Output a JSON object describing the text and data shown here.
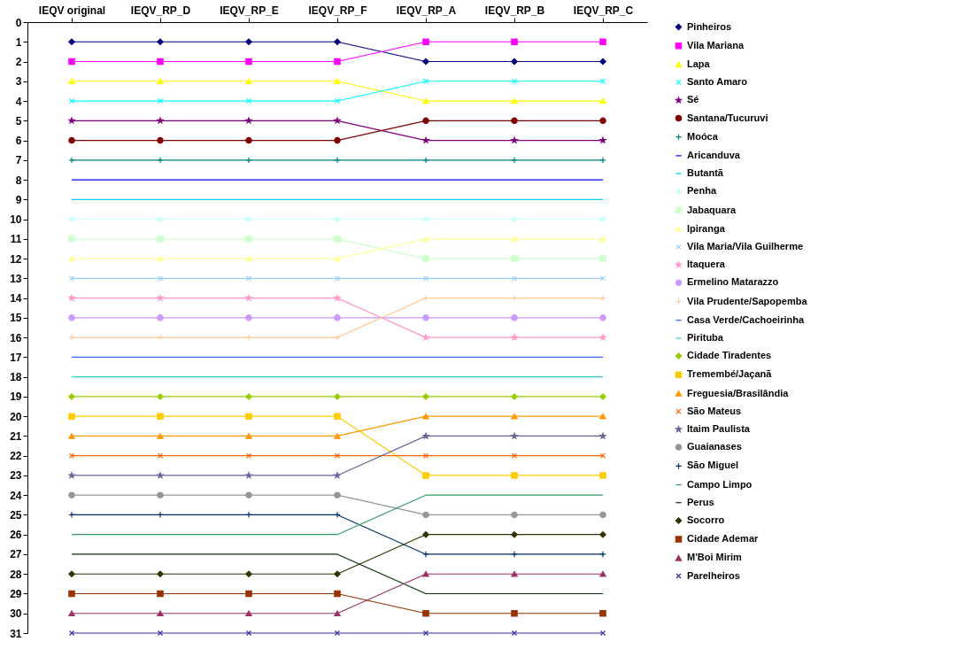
{
  "chart_data": {
    "type": "line",
    "categories": [
      "IEQV original",
      "IEQV_RP_D",
      "IEQV_RP_E",
      "IEQV_RP_F",
      "IEQV_RP_A",
      "IEQV_RP_B",
      "IEQV_RP_C"
    ],
    "ylim": [
      31,
      0
    ],
    "yticks": [
      0,
      1,
      2,
      3,
      4,
      5,
      6,
      7,
      8,
      9,
      10,
      11,
      12,
      13,
      14,
      15,
      16,
      17,
      18,
      19,
      20,
      21,
      22,
      23,
      24,
      25,
      26,
      27,
      28,
      29,
      30,
      31
    ],
    "grid": false,
    "legend": "right",
    "series": [
      {
        "name": "Pinheiros",
        "color": "#000080",
        "marker": "diamond",
        "values": [
          1,
          1,
          1,
          1,
          2,
          2,
          2
        ]
      },
      {
        "name": "Vila Mariana",
        "color": "#ff00ff",
        "marker": "square",
        "values": [
          2,
          2,
          2,
          2,
          1,
          1,
          1
        ]
      },
      {
        "name": "Lapa",
        "color": "#ffff00",
        "marker": "triangle",
        "values": [
          3,
          3,
          3,
          3,
          4,
          4,
          4
        ]
      },
      {
        "name": "Santo Amaro",
        "color": "#00ffff",
        "marker": "cross",
        "values": [
          4,
          4,
          4,
          4,
          3,
          3,
          3
        ]
      },
      {
        "name": "Sé",
        "color": "#800080",
        "marker": "star",
        "values": [
          5,
          5,
          5,
          5,
          6,
          6,
          6
        ]
      },
      {
        "name": "Santana/Tucuruvi",
        "color": "#800000",
        "marker": "circle",
        "values": [
          6,
          6,
          6,
          6,
          5,
          5,
          5
        ]
      },
      {
        "name": "Moóca",
        "color": "#008080",
        "marker": "plus",
        "values": [
          7,
          7,
          7,
          7,
          7,
          7,
          7
        ]
      },
      {
        "name": "Aricanduva",
        "color": "#0000ff",
        "marker": "none",
        "values": [
          8,
          8,
          8,
          8,
          8,
          8,
          8
        ]
      },
      {
        "name": "Butantã",
        "color": "#00ccff",
        "marker": "none",
        "values": [
          9,
          9,
          9,
          9,
          9,
          9,
          9
        ]
      },
      {
        "name": "Penha",
        "color": "#ccffff",
        "marker": "diamond",
        "values": [
          10,
          10,
          10,
          10,
          10,
          10,
          10
        ]
      },
      {
        "name": "Jabaquara",
        "color": "#ccffcc",
        "marker": "square",
        "values": [
          11,
          11,
          11,
          11,
          12,
          12,
          12
        ]
      },
      {
        "name": "Ipiranga",
        "color": "#ffff99",
        "marker": "triangle",
        "values": [
          12,
          12,
          12,
          12,
          11,
          11,
          11
        ]
      },
      {
        "name": "Vila Maria/Vila Guilherme",
        "color": "#99ccff",
        "marker": "cross",
        "values": [
          13,
          13,
          13,
          13,
          13,
          13,
          13
        ]
      },
      {
        "name": "Itaquera",
        "color": "#ff99cc",
        "marker": "star",
        "values": [
          14,
          14,
          14,
          14,
          16,
          16,
          16
        ]
      },
      {
        "name": "Ermelino Matarazzo",
        "color": "#cc99ff",
        "marker": "circle",
        "values": [
          15,
          15,
          15,
          15,
          15,
          15,
          15
        ]
      },
      {
        "name": "Vila Prudente/Sapopemba",
        "color": "#ffcc99",
        "marker": "plus",
        "values": [
          16,
          16,
          16,
          16,
          14,
          14,
          14
        ]
      },
      {
        "name": "Casa Verde/Cachoeirinha",
        "color": "#3366ff",
        "marker": "none",
        "values": [
          17,
          17,
          17,
          17,
          17,
          17,
          17
        ]
      },
      {
        "name": "Pirituba",
        "color": "#33cccc",
        "marker": "none",
        "values": [
          18,
          18,
          18,
          18,
          18,
          18,
          18
        ]
      },
      {
        "name": "Cidade Tiradentes",
        "color": "#99cc00",
        "marker": "diamond",
        "values": [
          19,
          19,
          19,
          19,
          19,
          19,
          19
        ]
      },
      {
        "name": "Tremembé/Jaçanã",
        "color": "#ffcc00",
        "marker": "square",
        "values": [
          20,
          20,
          20,
          20,
          23,
          23,
          23
        ]
      },
      {
        "name": "Freguesia/Brasilândia",
        "color": "#ff9900",
        "marker": "triangle",
        "values": [
          21,
          21,
          21,
          21,
          20,
          20,
          20
        ]
      },
      {
        "name": "São Mateus",
        "color": "#ff6600",
        "marker": "cross",
        "values": [
          22,
          22,
          22,
          22,
          22,
          22,
          22
        ]
      },
      {
        "name": "Itaim Paulista",
        "color": "#666699",
        "marker": "star",
        "values": [
          23,
          23,
          23,
          23,
          21,
          21,
          21
        ]
      },
      {
        "name": "Guaianases",
        "color": "#969696",
        "marker": "circle",
        "values": [
          24,
          24,
          24,
          24,
          25,
          25,
          25
        ]
      },
      {
        "name": "São Miguel",
        "color": "#003366",
        "marker": "plus",
        "values": [
          25,
          25,
          25,
          25,
          27,
          27,
          27
        ]
      },
      {
        "name": "Campo Limpo",
        "color": "#339966",
        "marker": "none",
        "values": [
          26,
          26,
          26,
          26,
          24,
          24,
          24
        ]
      },
      {
        "name": "Perus",
        "color": "#003300",
        "marker": "none",
        "values": [
          27,
          27,
          27,
          27,
          29,
          29,
          29
        ]
      },
      {
        "name": "Socorro",
        "color": "#333300",
        "marker": "diamond",
        "values": [
          28,
          28,
          28,
          28,
          26,
          26,
          26
        ]
      },
      {
        "name": "Cidade Ademar",
        "color": "#993300",
        "marker": "square",
        "values": [
          29,
          29,
          29,
          29,
          30,
          30,
          30
        ]
      },
      {
        "name": "M'Boi Mirim",
        "color": "#993366",
        "marker": "triangle",
        "values": [
          30,
          30,
          30,
          30,
          28,
          28,
          28
        ]
      },
      {
        "name": "Parelheiros",
        "color": "#333399",
        "marker": "cross",
        "values": [
          31,
          31,
          31,
          31,
          31,
          31,
          31
        ]
      }
    ]
  }
}
